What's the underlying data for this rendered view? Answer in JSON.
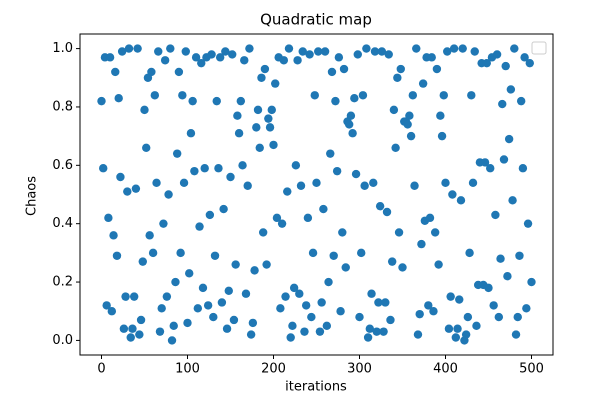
{
  "chart_data": {
    "type": "scatter",
    "title": "Quadratic map",
    "xlabel": "iterations",
    "ylabel": "Chaos",
    "color": "#1f77b4",
    "xlim": [
      -25,
      525
    ],
    "ylim": [
      -0.05,
      1.05
    ],
    "xticks": [
      0,
      100,
      200,
      300,
      400,
      500
    ],
    "yticks": [
      {
        "value": 0,
        "label": "0.0"
      },
      {
        "value": 0.2,
        "label": "0.2"
      },
      {
        "value": 0.4,
        "label": "0.4"
      },
      {
        "value": 0.6,
        "label": "0.6"
      },
      {
        "value": 0.8,
        "label": "0.8"
      },
      {
        "value": 1,
        "label": "1.0"
      }
    ],
    "x": [
      0,
      2,
      4,
      6,
      8,
      10,
      12,
      14,
      16,
      18,
      20,
      22,
      24,
      26,
      28,
      30,
      32,
      34,
      36,
      38,
      40,
      42,
      44,
      46,
      48,
      50,
      52,
      54,
      56,
      58,
      60,
      62,
      64,
      66,
      68,
      70,
      72,
      74,
      76,
      78,
      80,
      82,
      84,
      86,
      88,
      90,
      92,
      94,
      96,
      98,
      100,
      102,
      104,
      106,
      108,
      110,
      112,
      114,
      116,
      118,
      120,
      122,
      124,
      126,
      128,
      130,
      132,
      134,
      136,
      138,
      140,
      142,
      144,
      146,
      148,
      150,
      152,
      154,
      156,
      158,
      160,
      162,
      164,
      166,
      168,
      170,
      172,
      174,
      176,
      178,
      180,
      182,
      184,
      186,
      188,
      190,
      192,
      194,
      196,
      198,
      200,
      202,
      204,
      206,
      208,
      210,
      212,
      214,
      216,
      218,
      220,
      222,
      224,
      226,
      228,
      230,
      232,
      234,
      236,
      238,
      240,
      242,
      244,
      246,
      248,
      250,
      252,
      254,
      256,
      258,
      260,
      262,
      264,
      266,
      268,
      270,
      272,
      274,
      276,
      278,
      280,
      282,
      284,
      286,
      288,
      290,
      292,
      294,
      296,
      298,
      300,
      302,
      304,
      306,
      308,
      310,
      312,
      314,
      316,
      318,
      320,
      322,
      324,
      326,
      328,
      330,
      332,
      334,
      336,
      338,
      340,
      342,
      344,
      346,
      348,
      350,
      352,
      354,
      356,
      358,
      360,
      362,
      364,
      366,
      368,
      370,
      372,
      374,
      376,
      378,
      380,
      382,
      384,
      386,
      388,
      390,
      392,
      394,
      396,
      398,
      400,
      402,
      404,
      406,
      408,
      410,
      412,
      414,
      416,
      418,
      420,
      422,
      424,
      426,
      428,
      430,
      432,
      434,
      436,
      438,
      440,
      442,
      444,
      446,
      448,
      450,
      452,
      454,
      456,
      458,
      460,
      462,
      464,
      466,
      468,
      470,
      472,
      474,
      476,
      478,
      480,
      482,
      484,
      486,
      488,
      490,
      492,
      494,
      496,
      498,
      500
    ],
    "values": [
      0.82,
      0.59,
      0.97,
      0.12,
      0.42,
      0.97,
      0.1,
      0.36,
      0.92,
      0.29,
      0.83,
      0.56,
      0.99,
      0.04,
      0.15,
      0.51,
      1.0,
      0.01,
      0.04,
      0.15,
      0.52,
      1.0,
      0.02,
      0.07,
      0.27,
      0.79,
      0.66,
      0.9,
      0.36,
      0.92,
      0.3,
      0.84,
      0.54,
      0.99,
      0.03,
      0.11,
      0.4,
      0.96,
      0.15,
      0.5,
      1.0,
      0.0,
      0.05,
      0.2,
      0.64,
      0.92,
      0.3,
      0.84,
      0.54,
      0.99,
      0.06,
      0.23,
      0.71,
      0.82,
      0.58,
      0.97,
      0.11,
      0.39,
      0.95,
      0.18,
      0.59,
      0.97,
      0.12,
      0.43,
      0.98,
      0.08,
      0.29,
      0.82,
      0.59,
      0.97,
      0.13,
      0.45,
      0.99,
      0.04,
      0.17,
      0.56,
      0.98,
      0.07,
      0.26,
      0.77,
      0.71,
      0.82,
      0.6,
      0.96,
      0.16,
      0.53,
      1.0,
      0.02,
      0.06,
      0.24,
      0.73,
      0.79,
      0.66,
      0.9,
      0.37,
      0.93,
      0.26,
      0.76,
      0.73,
      0.79,
      0.67,
      0.88,
      0.42,
      0.97,
      0.11,
      0.4,
      0.96,
      0.15,
      0.51,
      1.0,
      0.01,
      0.05,
      0.18,
      0.6,
      0.96,
      0.16,
      0.53,
      0.99,
      0.03,
      0.12,
      0.42,
      0.98,
      0.08,
      0.3,
      0.84,
      0.54,
      0.99,
      0.03,
      0.13,
      0.45,
      0.99,
      0.05,
      0.2,
      0.64,
      0.92,
      0.29,
      0.82,
      0.58,
      0.97,
      0.1,
      0.37,
      0.93,
      0.25,
      0.75,
      0.74,
      0.77,
      0.71,
      0.83,
      0.57,
      0.98,
      0.08,
      0.3,
      0.84,
      0.53,
      1.0,
      0.01,
      0.04,
      0.16,
      0.54,
      0.99,
      0.03,
      0.13,
      0.46,
      0.99,
      0.03,
      0.13,
      0.44,
      0.98,
      0.07,
      0.27,
      0.79,
      0.66,
      0.9,
      0.37,
      0.93,
      0.25,
      0.75,
      0.75,
      0.74,
      0.77,
      0.7,
      0.84,
      0.53,
      1.0,
      0.02,
      0.09,
      0.33,
      0.88,
      0.41,
      0.97,
      0.12,
      0.42,
      0.97,
      0.1,
      0.37,
      0.93,
      0.26,
      0.77,
      0.7,
      0.84,
      0.54,
      0.99,
      0.04,
      0.15,
      0.5,
      1.0,
      0.01,
      0.04,
      0.14,
      0.48,
      1.0,
      0.0,
      0.02,
      0.08,
      0.3,
      0.84,
      0.54,
      0.99,
      0.05,
      0.19,
      0.61,
      0.95,
      0.19,
      0.61,
      0.95,
      0.18,
      0.59,
      0.97,
      0.12,
      0.43,
      0.98,
      0.08,
      0.28,
      0.81,
      0.62,
      0.94,
      0.22,
      0.69,
      0.86,
      0.48,
      1.0,
      0.02,
      0.08,
      0.29,
      0.82,
      0.59,
      0.97,
      0.11,
      0.4,
      0.95,
      0.2
    ]
  }
}
